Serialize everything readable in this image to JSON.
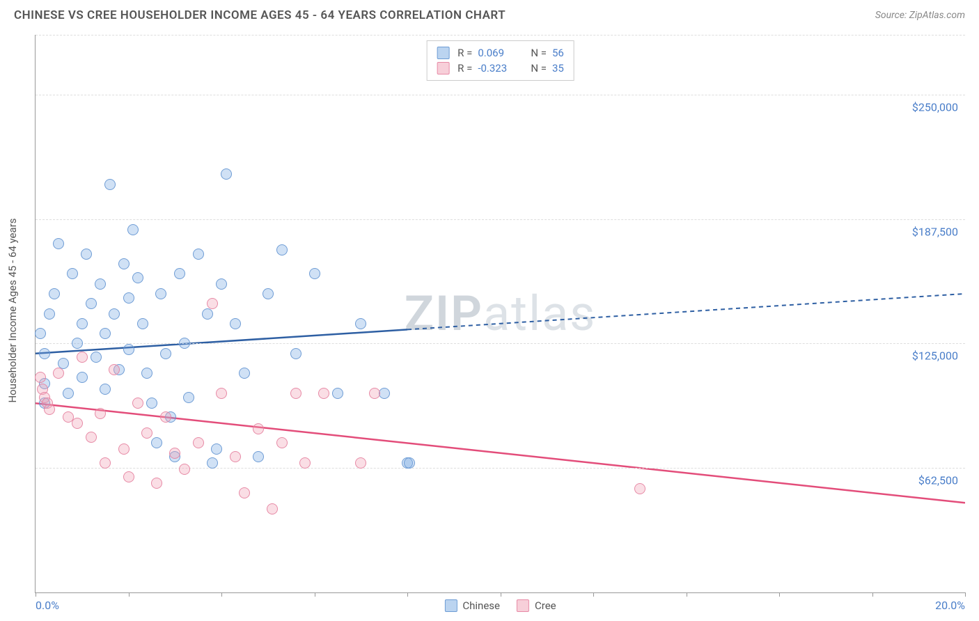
{
  "header": {
    "title": "CHINESE VS CREE HOUSEHOLDER INCOME AGES 45 - 64 YEARS CORRELATION CHART",
    "source_prefix": "Source: ",
    "source_name": "ZipAtlas.com"
  },
  "chart": {
    "type": "scatter",
    "ylabel": "Householder Income Ages 45 - 64 years",
    "watermark_zip": "ZIP",
    "watermark_atlas": "atlas",
    "xlim": [
      0,
      20
    ],
    "ylim": [
      0,
      280000
    ],
    "x_ticks": [
      0,
      2,
      4,
      6,
      8,
      10,
      12,
      14,
      16,
      18,
      20
    ],
    "x_tick_labels": {
      "0": "0.0%",
      "20": "20.0%"
    },
    "y_gridlines": [
      62500,
      125000,
      187500,
      250000,
      280000
    ],
    "y_tick_labels": {
      "62500": "$62,500",
      "125000": "$125,000",
      "187500": "$187,500",
      "250000": "$250,000"
    },
    "colors": {
      "series_blue_fill": "rgba(120,170,225,0.35)",
      "series_blue_stroke": "#6496d2",
      "series_pink_fill": "rgba(240,160,180,0.35)",
      "series_pink_stroke": "#e6829f",
      "trend_blue": "#2e5fa3",
      "trend_pink": "#e34d7a",
      "axis_text": "#4a7ec9",
      "grid": "#dddddd",
      "title_text": "#555555",
      "background": "#ffffff"
    },
    "legend_top": [
      {
        "swatch": "blue",
        "r_label": "R =",
        "r_value": "0.069",
        "n_label": "N =",
        "n_value": "56"
      },
      {
        "swatch": "pink",
        "r_label": "R =",
        "r_value": "-0.323",
        "n_label": "N =",
        "n_value": "35"
      }
    ],
    "legend_bottom": [
      {
        "swatch": "blue",
        "label": "Chinese"
      },
      {
        "swatch": "pink",
        "label": "Cree"
      }
    ],
    "series": [
      {
        "name": "Chinese",
        "color": "blue",
        "trend": {
          "y_at_x0": 120000,
          "y_at_x20": 150000,
          "solid_until_x": 8
        },
        "points": [
          [
            0.1,
            130000
          ],
          [
            0.2,
            120000
          ],
          [
            0.2,
            105000
          ],
          [
            0.2,
            95000
          ],
          [
            0.3,
            140000
          ],
          [
            0.4,
            150000
          ],
          [
            0.5,
            175000
          ],
          [
            0.6,
            115000
          ],
          [
            0.7,
            100000
          ],
          [
            0.8,
            160000
          ],
          [
            0.9,
            125000
          ],
          [
            1.0,
            135000
          ],
          [
            1.0,
            108000
          ],
          [
            1.1,
            170000
          ],
          [
            1.2,
            145000
          ],
          [
            1.3,
            118000
          ],
          [
            1.4,
            155000
          ],
          [
            1.5,
            130000
          ],
          [
            1.5,
            102000
          ],
          [
            1.6,
            205000
          ],
          [
            1.7,
            140000
          ],
          [
            1.8,
            112000
          ],
          [
            1.9,
            165000
          ],
          [
            2.0,
            148000
          ],
          [
            2.0,
            122000
          ],
          [
            2.1,
            182000
          ],
          [
            2.2,
            158000
          ],
          [
            2.3,
            135000
          ],
          [
            2.4,
            110000
          ],
          [
            2.5,
            95000
          ],
          [
            2.6,
            75000
          ],
          [
            2.7,
            150000
          ],
          [
            2.8,
            120000
          ],
          [
            2.9,
            88000
          ],
          [
            3.0,
            68000
          ],
          [
            3.1,
            160000
          ],
          [
            3.2,
            125000
          ],
          [
            3.3,
            98000
          ],
          [
            3.5,
            170000
          ],
          [
            3.7,
            140000
          ],
          [
            3.8,
            65000
          ],
          [
            3.9,
            72000
          ],
          [
            4.0,
            155000
          ],
          [
            4.1,
            210000
          ],
          [
            4.3,
            135000
          ],
          [
            4.5,
            110000
          ],
          [
            4.8,
            68000
          ],
          [
            5.0,
            150000
          ],
          [
            5.3,
            172000
          ],
          [
            5.6,
            120000
          ],
          [
            6.0,
            160000
          ],
          [
            6.5,
            100000
          ],
          [
            7.0,
            135000
          ],
          [
            7.5,
            100000
          ],
          [
            8.0,
            65000
          ],
          [
            8.05,
            65000
          ]
        ]
      },
      {
        "name": "Cree",
        "color": "pink",
        "trend": {
          "y_at_x0": 95000,
          "y_at_x20": 45000,
          "solid_until_x": 20
        },
        "points": [
          [
            0.1,
            108000
          ],
          [
            0.15,
            102000
          ],
          [
            0.2,
            98000
          ],
          [
            0.25,
            95000
          ],
          [
            0.3,
            92000
          ],
          [
            0.5,
            110000
          ],
          [
            0.7,
            88000
          ],
          [
            0.9,
            85000
          ],
          [
            1.0,
            118000
          ],
          [
            1.2,
            78000
          ],
          [
            1.4,
            90000
          ],
          [
            1.5,
            65000
          ],
          [
            1.7,
            112000
          ],
          [
            1.9,
            72000
          ],
          [
            2.0,
            58000
          ],
          [
            2.2,
            95000
          ],
          [
            2.4,
            80000
          ],
          [
            2.6,
            55000
          ],
          [
            2.8,
            88000
          ],
          [
            3.0,
            70000
          ],
          [
            3.2,
            62000
          ],
          [
            3.5,
            75000
          ],
          [
            3.8,
            145000
          ],
          [
            4.0,
            100000
          ],
          [
            4.3,
            68000
          ],
          [
            4.5,
            50000
          ],
          [
            4.8,
            82000
          ],
          [
            5.1,
            42000
          ],
          [
            5.3,
            75000
          ],
          [
            5.6,
            100000
          ],
          [
            5.8,
            65000
          ],
          [
            6.2,
            100000
          ],
          [
            7.0,
            65000
          ],
          [
            7.3,
            100000
          ],
          [
            13.0,
            52000
          ]
        ]
      }
    ]
  }
}
